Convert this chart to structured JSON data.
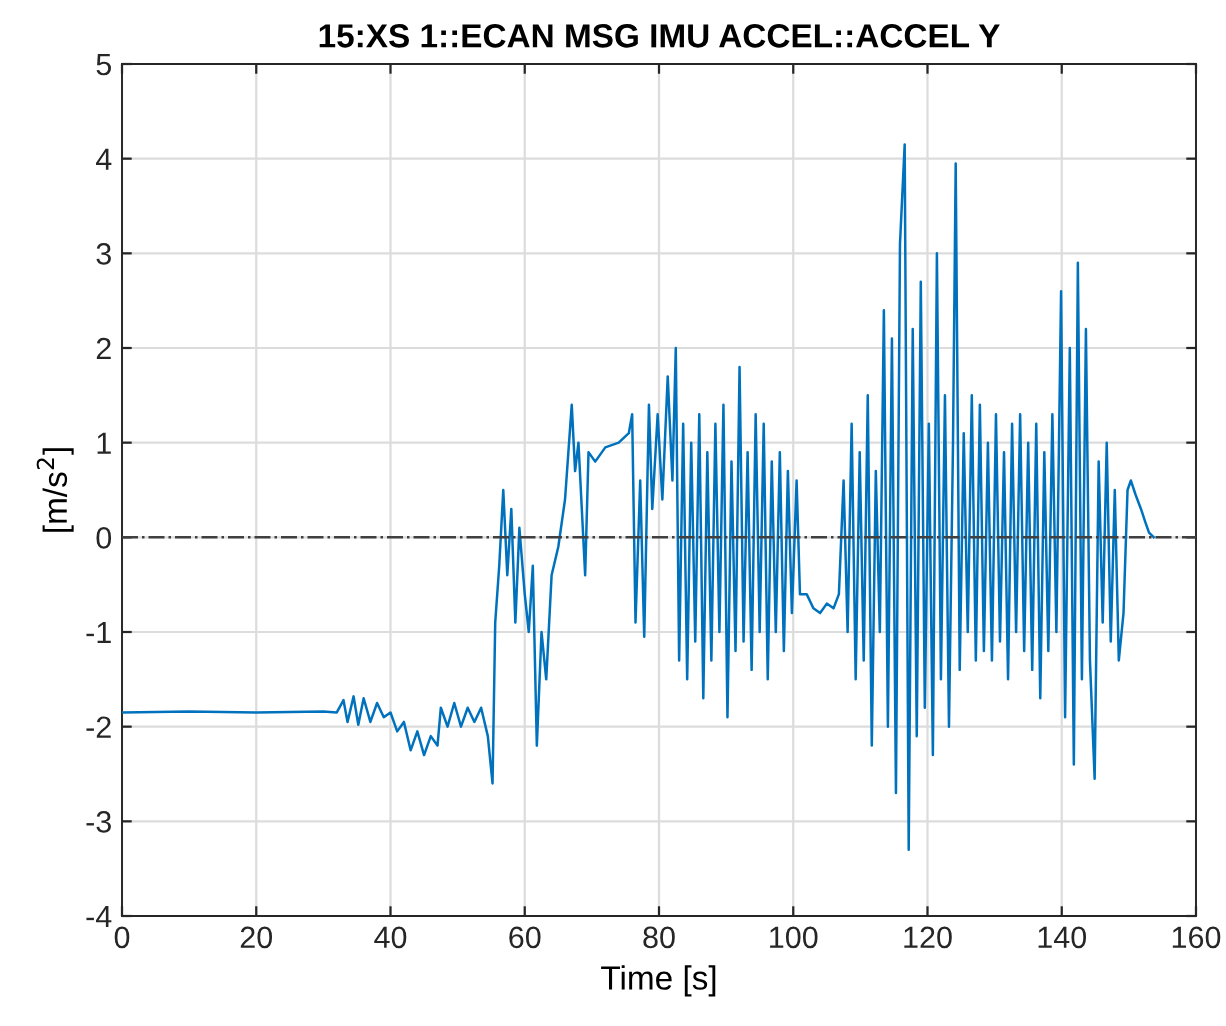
{
  "chart_data": {
    "type": "line",
    "title": "15:XS 1::ECAN MSG IMU ACCEL::ACCEL Y",
    "xlabel": "Time [s]",
    "ylabel": "[m/s$^{2}$]",
    "xlim": [
      0,
      160
    ],
    "xticks": [
      0,
      20,
      40,
      60,
      80,
      100,
      120,
      140,
      160
    ],
    "ylim": [
      -4,
      5
    ],
    "yticks": [
      -4,
      -3,
      -2,
      -1,
      0,
      1,
      2,
      3,
      4,
      5
    ],
    "grid": true,
    "line_style": "solid",
    "marker": "none",
    "ref_lines": [
      {
        "axis": "y",
        "value": 0,
        "color": "#404040",
        "line_style": "dashdot"
      }
    ],
    "series": [
      {
        "color": "#0072bd",
        "x": [
          0,
          10,
          20,
          30,
          32,
          33,
          33.6,
          34.5,
          35.2,
          36,
          37,
          38,
          39,
          40,
          41,
          42,
          43,
          44,
          45,
          46,
          47,
          47.5,
          48.5,
          49.5,
          50.5,
          51.5,
          52.5,
          53.5,
          54.5,
          55.2,
          55.6,
          56.2,
          56.8,
          57.4,
          58,
          58.6,
          59.2,
          60,
          60.6,
          61.2,
          61.8,
          62.5,
          63.2,
          64,
          65,
          66,
          66.5,
          67,
          67.5,
          68,
          69,
          69.5,
          70.5,
          72,
          74,
          75.5,
          76,
          76.5,
          77.2,
          77.8,
          78.5,
          79,
          79.8,
          80.5,
          81.3,
          82,
          82.5,
          83,
          83.6,
          84.2,
          84.8,
          85.4,
          86,
          86.6,
          87.2,
          87.8,
          88.4,
          89,
          89.6,
          90.2,
          90.8,
          91.4,
          92,
          92.6,
          93.2,
          93.8,
          94.4,
          95,
          95.6,
          96.2,
          96.8,
          97.4,
          98,
          98.6,
          99.2,
          99.8,
          100.5,
          101,
          102,
          103,
          104,
          105,
          106,
          106.8,
          107.5,
          108.1,
          108.7,
          109.3,
          109.9,
          110.5,
          111.1,
          111.7,
          112.3,
          112.9,
          113.5,
          114.1,
          114.7,
          115.3,
          115.9,
          116.6,
          117.2,
          117.8,
          118.4,
          119,
          119.6,
          120.2,
          120.8,
          121.4,
          122,
          122.6,
          123.2,
          123.8,
          124.2,
          124.8,
          125.4,
          126,
          126.6,
          127.2,
          127.8,
          128.4,
          129,
          129.6,
          130.2,
          130.8,
          131.4,
          132,
          132.6,
          133.2,
          133.8,
          134.4,
          135,
          135.6,
          136.2,
          136.8,
          137.4,
          138,
          138.6,
          139.2,
          139.9,
          140.5,
          141.2,
          141.8,
          142.4,
          143,
          143.6,
          144.2,
          144.9,
          145.5,
          146.1,
          146.7,
          147.3,
          147.9,
          148.5,
          149.2,
          149.8,
          150.3,
          151,
          151.8,
          152.5,
          153,
          153.7
        ],
        "values": [
          -1.85,
          -1.84,
          -1.85,
          -1.84,
          -1.85,
          -1.72,
          -1.95,
          -1.68,
          -1.98,
          -1.7,
          -1.95,
          -1.75,
          -1.9,
          -1.85,
          -2.05,
          -1.95,
          -2.25,
          -2.05,
          -2.3,
          -2.1,
          -2.2,
          -1.8,
          -2.0,
          -1.75,
          -2.0,
          -1.8,
          -1.95,
          -1.8,
          -2.1,
          -2.6,
          -0.9,
          -0.3,
          0.5,
          -0.4,
          0.3,
          -0.9,
          0.1,
          -0.6,
          -1.0,
          -0.3,
          -2.2,
          -1.0,
          -1.5,
          -0.4,
          -0.1,
          0.4,
          0.9,
          1.4,
          0.7,
          1.0,
          -0.4,
          0.9,
          0.8,
          0.95,
          1.0,
          1.1,
          1.3,
          -0.9,
          0.6,
          -1.05,
          1.4,
          0.3,
          1.3,
          0.4,
          1.7,
          0.6,
          2.0,
          -1.3,
          1.2,
          -1.5,
          1.0,
          -1.1,
          1.3,
          -1.7,
          0.9,
          -1.3,
          1.2,
          -1.0,
          1.4,
          -1.9,
          0.8,
          -1.2,
          1.8,
          -1.1,
          0.9,
          -1.4,
          1.3,
          -1.0,
          1.2,
          -1.5,
          0.8,
          -1.0,
          0.9,
          -1.2,
          0.7,
          -0.8,
          0.6,
          -0.6,
          -0.6,
          -0.75,
          -0.8,
          -0.7,
          -0.75,
          -0.6,
          0.6,
          -1.0,
          1.2,
          -1.5,
          0.9,
          -1.3,
          1.5,
          -2.2,
          0.7,
          -1.0,
          2.4,
          -2.0,
          2.1,
          -2.7,
          3.1,
          4.15,
          -3.3,
          2.2,
          -2.1,
          2.7,
          -1.8,
          1.2,
          -2.3,
          3.0,
          -1.5,
          1.5,
          -2.0,
          1.0,
          3.95,
          -1.4,
          1.1,
          -1.0,
          1.5,
          -1.3,
          1.4,
          -1.2,
          1.0,
          -1.3,
          1.3,
          -1.1,
          0.9,
          -1.5,
          1.2,
          -1.0,
          1.3,
          -1.2,
          1.0,
          -1.4,
          1.2,
          -1.7,
          0.9,
          -1.2,
          1.3,
          -1.0,
          2.6,
          -1.9,
          2.0,
          -2.4,
          2.9,
          -1.5,
          2.2,
          -1.3,
          -2.55,
          0.8,
          -0.9,
          1.0,
          -1.1,
          0.5,
          -1.3,
          -0.8,
          0.5,
          0.6,
          0.45,
          0.3,
          0.15,
          0.05,
          0.0
        ]
      }
    ]
  }
}
